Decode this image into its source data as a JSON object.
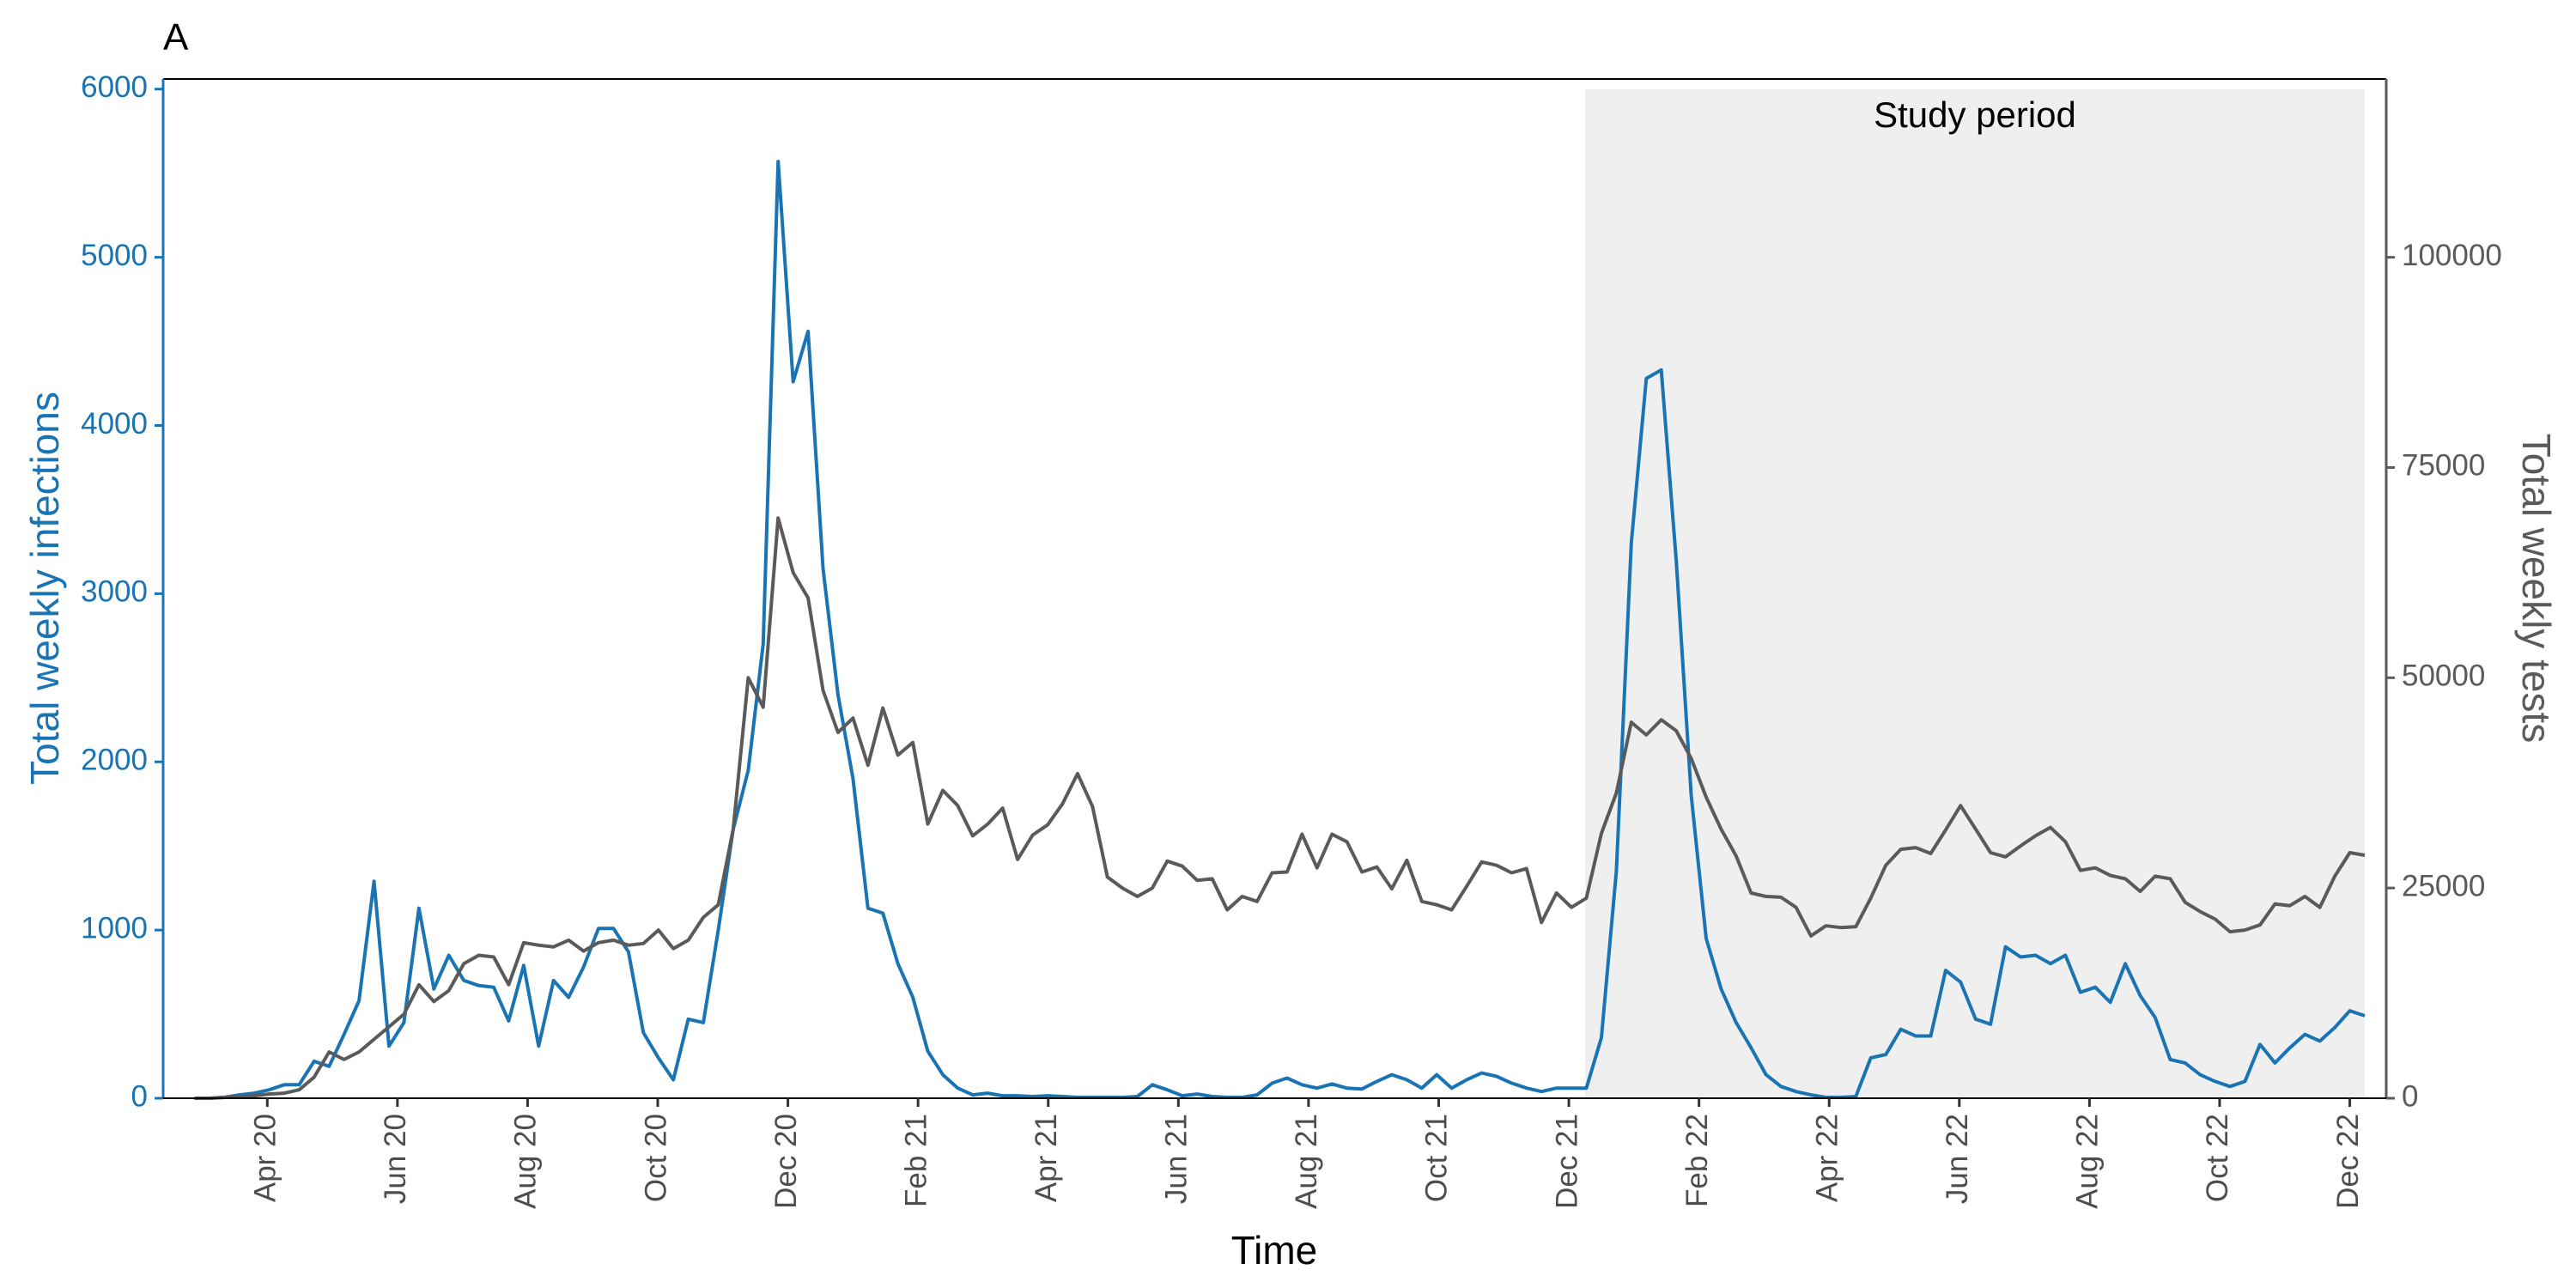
{
  "chart_data": {
    "type": "line",
    "panel_label": "A",
    "x_label": "Time",
    "y_label": "Total weekly infections",
    "y2_label": "Total weekly tests",
    "study_period": {
      "label": "Study period",
      "start": 23.25,
      "end": 35.23,
      "color": "#efefef"
    },
    "x": [
      1.88,
      2.11,
      2.34,
      2.57,
      2.8,
      3.03,
      3.26,
      3.49,
      3.72,
      3.95,
      4.18,
      4.41,
      4.64,
      4.87,
      5.1,
      5.33,
      5.56,
      5.79,
      6.02,
      6.25,
      6.48,
      6.71,
      6.94,
      7.17,
      7.4,
      7.63,
      7.86,
      8.09,
      8.32,
      8.55,
      8.78,
      9.01,
      9.24,
      9.47,
      9.7,
      9.93,
      10.16,
      10.39,
      10.62,
      10.85,
      11.08,
      11.31,
      11.54,
      11.77,
      12,
      12.23,
      12.46,
      12.69,
      12.92,
      13.15,
      13.38,
      13.61,
      13.84,
      14.07,
      14.3,
      14.53,
      14.76,
      14.99,
      15.22,
      15.45,
      15.68,
      15.91,
      16.14,
      16.37,
      16.6,
      16.83,
      17.06,
      17.29,
      17.52,
      17.75,
      17.98,
      18.21,
      18.44,
      18.67,
      18.9,
      19.13,
      19.36,
      19.59,
      19.82,
      20.05,
      20.28,
      20.51,
      20.74,
      20.97,
      21.2,
      21.43,
      21.66,
      21.89,
      22.12,
      22.35,
      22.58,
      22.81,
      23.04,
      23.27,
      23.5,
      23.73,
      23.96,
      24.19,
      24.42,
      24.65,
      24.88,
      25.11,
      25.34,
      25.57,
      25.8,
      26.03,
      26.26,
      26.49,
      26.72,
      26.95,
      27.18,
      27.41,
      27.64,
      27.87,
      28.1,
      28.33,
      28.56,
      28.79,
      29.02,
      29.25,
      29.48,
      29.71,
      29.94,
      30.17,
      30.4,
      30.63,
      30.86,
      31.09,
      31.32,
      31.55,
      31.78,
      32.01,
      32.24,
      32.47,
      32.7,
      32.93,
      33.16,
      33.39,
      33.62,
      33.85,
      34.08,
      34.31,
      34.54,
      34.77,
      35,
      35.23
    ],
    "series": [
      {
        "color": "#1a74b3",
        "axis": "y",
        "values": [
          0,
          0,
          5,
          20,
          30,
          50,
          80,
          80,
          220,
          190,
          380,
          580,
          1290,
          310,
          450,
          1130,
          650,
          850,
          700,
          670,
          660,
          460,
          790,
          310,
          700,
          600,
          780,
          1010,
          1010,
          870,
          390,
          240,
          110,
          470,
          450,
          1000,
          1600,
          1950,
          2700,
          5570,
          4260,
          4560,
          3150,
          2400,
          1900,
          1130,
          1100,
          800,
          600,
          280,
          140,
          60,
          20,
          30,
          15,
          15,
          10,
          15,
          10,
          5,
          5,
          5,
          5,
          10,
          80,
          50,
          15,
          25,
          10,
          5,
          5,
          20,
          90,
          120,
          80,
          60,
          85,
          60,
          55,
          100,
          140,
          110,
          60,
          140,
          60,
          110,
          150,
          130,
          90,
          60,
          40,
          60,
          60,
          60,
          360,
          1350,
          3300,
          4280,
          4330,
          3200,
          1800,
          950,
          650,
          450,
          300,
          140,
          70,
          40,
          20,
          5,
          5,
          10,
          240,
          260,
          410,
          370,
          370,
          760,
          690,
          470,
          440,
          900,
          840,
          850,
          800,
          850,
          630,
          660,
          570,
          800,
          610,
          480,
          230,
          210,
          140,
          100,
          70,
          100,
          320,
          210,
          300,
          380,
          340,
          420,
          520,
          490
        ]
      },
      {
        "color": "#5a5a5a",
        "axis": "y2",
        "values": [
          0,
          0,
          100,
          200,
          300,
          500,
          600,
          1000,
          2500,
          5500,
          4600,
          5500,
          7000,
          8500,
          10000,
          13500,
          11500,
          12800,
          16000,
          17000,
          16800,
          13500,
          18500,
          18200,
          18000,
          18800,
          17500,
          18500,
          18800,
          18200,
          18400,
          20000,
          17800,
          18800,
          21500,
          23000,
          32000,
          50000,
          46500,
          69000,
          62500,
          59500,
          48500,
          43500,
          45200,
          39600,
          46400,
          40800,
          42300,
          32600,
          36600,
          34800,
          31200,
          32600,
          34500,
          28400,
          31300,
          32500,
          35000,
          38600,
          34700,
          26300,
          25000,
          24000,
          25000,
          28200,
          27600,
          25900,
          26100,
          22400,
          24000,
          23400,
          26800,
          26900,
          31400,
          27400,
          31400,
          30500,
          26900,
          27500,
          24900,
          28300,
          23400,
          23000,
          22400,
          25200,
          28100,
          27700,
          26800,
          27300,
          20900,
          24400,
          22700,
          23800,
          31500,
          36300,
          44700,
          43200,
          45000,
          43700,
          40400,
          35800,
          32000,
          28800,
          24400,
          24000,
          23900,
          22700,
          19300,
          20500,
          20300,
          20400,
          23800,
          27700,
          29600,
          29800,
          29100,
          31900,
          34800,
          32000,
          29200,
          28700,
          30000,
          31200,
          32200,
          30500,
          27100,
          27400,
          26500,
          26100,
          24600,
          26400,
          26100,
          23300,
          22200,
          21300,
          19800,
          20000,
          20600,
          23100,
          22900,
          24000,
          22700,
          26400,
          29200,
          28900
        ]
      }
    ],
    "xlim": [
      1.4,
      35.56
    ],
    "xticks": [
      {
        "value": 3,
        "label": "Apr 20"
      },
      {
        "value": 5,
        "label": "Jun 20"
      },
      {
        "value": 7,
        "label": "Aug 20"
      },
      {
        "value": 9,
        "label": "Oct 20"
      },
      {
        "value": 11,
        "label": "Dec 20"
      },
      {
        "value": 13,
        "label": "Feb 21"
      },
      {
        "value": 15,
        "label": "Apr 21"
      },
      {
        "value": 17,
        "label": "Jun 21"
      },
      {
        "value": 19,
        "label": "Aug 21"
      },
      {
        "value": 21,
        "label": "Oct 21"
      },
      {
        "value": 23,
        "label": "Dec 21"
      },
      {
        "value": 25,
        "label": "Feb 22"
      },
      {
        "value": 27,
        "label": "Apr 22"
      },
      {
        "value": 29,
        "label": "Jun 22"
      },
      {
        "value": 31,
        "label": "Aug 22"
      },
      {
        "value": 33,
        "label": "Oct 22"
      },
      {
        "value": 35,
        "label": "Dec 22"
      }
    ],
    "ylim": [
      0,
      6060
    ],
    "yticks": [
      0,
      1000,
      2000,
      3000,
      4000,
      5000,
      6000
    ],
    "y2lim": [
      0,
      121200
    ],
    "y2ticks": [
      0,
      25000,
      50000,
      75000,
      100000
    ]
  }
}
